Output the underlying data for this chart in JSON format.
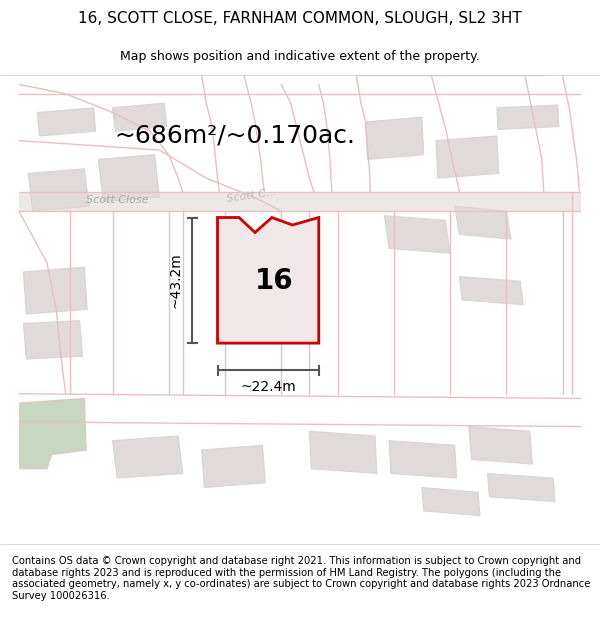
{
  "title_line1": "16, SCOTT CLOSE, FARNHAM COMMON, SLOUGH, SL2 3HT",
  "title_line2": "Map shows position and indicative extent of the property.",
  "area_text": "~686m²/~0.170ac.",
  "label_16": "16",
  "label_width": "~22.4m",
  "label_height": "~43.2m",
  "label_scott_close": "Scott Close",
  "label_scott_c": "Scott C...",
  "footer": "Contains OS data © Crown copyright and database right 2021. This information is subject to Crown copyright and database rights 2023 and is reproduced with the permission of HM Land Registry. The polygons (including the associated geometry, namely x, y co-ordinates) are subject to Crown copyright and database rights 2023 Ordnance Survey 100026316.",
  "bg_color": "#f5f5f5",
  "map_bg": "#f0eeee",
  "road_color": "#e8c0c0",
  "building_color": "#d8d4d4",
  "building_fill": "#e0dada",
  "plot_color": "#cc0000",
  "plot_fill": "#f0e8e8",
  "green_fill": "#c8d8c0",
  "dim_color": "#555555",
  "title_fontsize": 11,
  "subtitle_fontsize": 9,
  "area_fontsize": 18,
  "label_fontsize": 20,
  "footer_fontsize": 7.2
}
